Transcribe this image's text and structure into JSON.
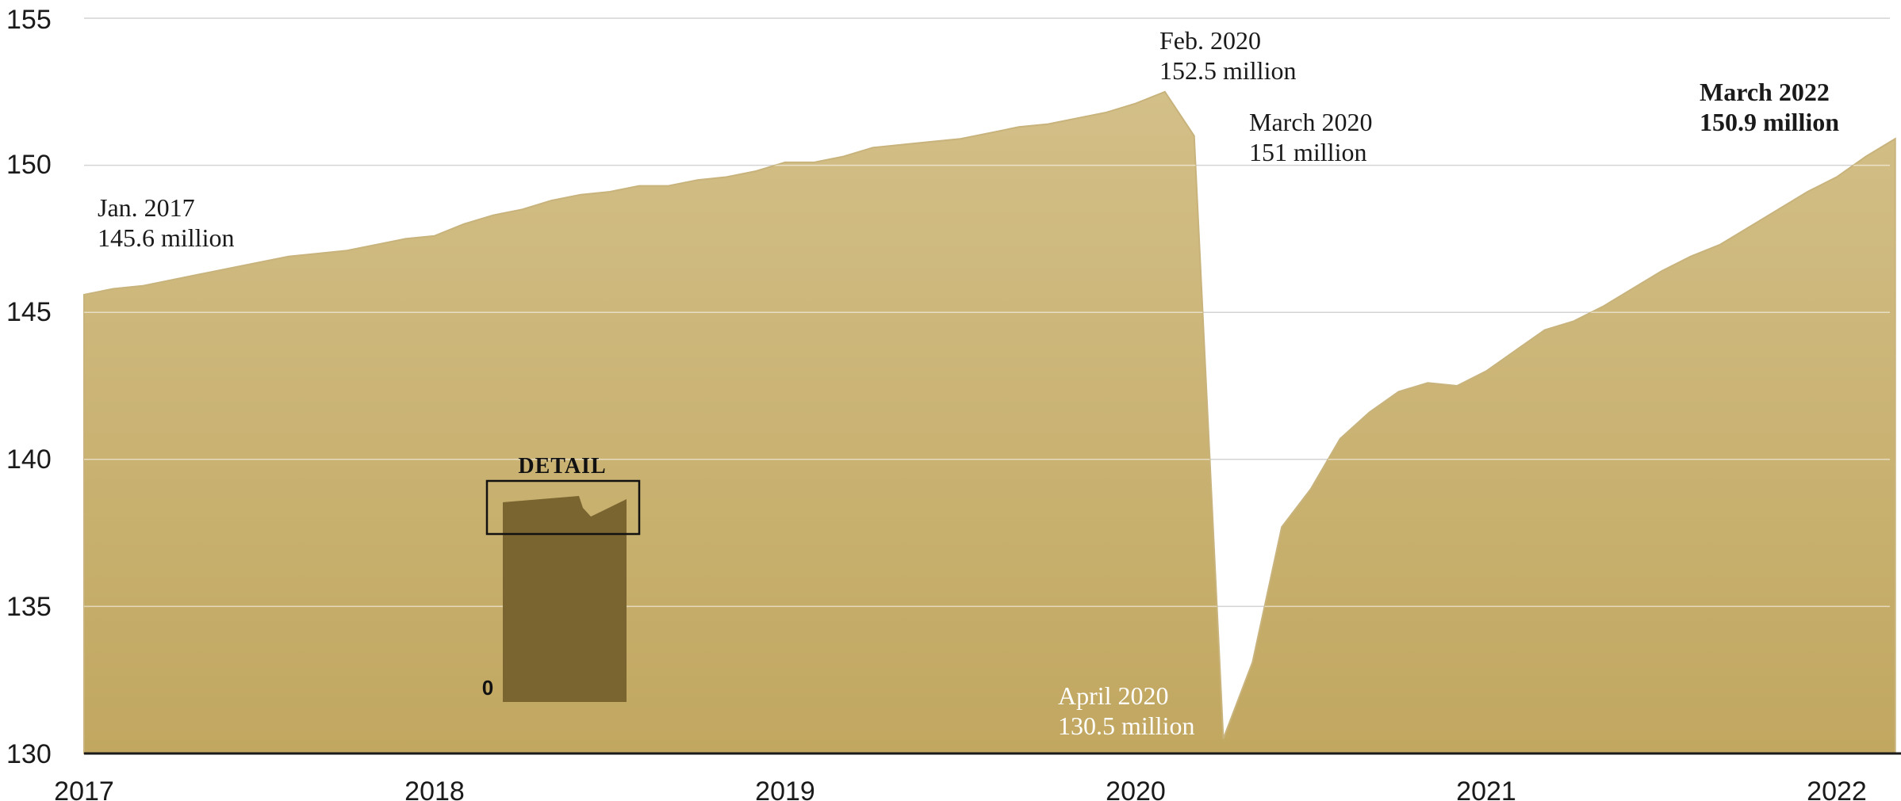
{
  "chart_data": {
    "type": "area",
    "title": "",
    "xlabel": "",
    "ylabel": "",
    "ylim": [
      130,
      155
    ],
    "yticks": [
      "130",
      "135",
      "140",
      "145",
      "150",
      "155"
    ],
    "xticks": [
      "2017",
      "2018",
      "2019",
      "2020",
      "2021",
      "2022"
    ],
    "grid": "horizontal",
    "colors": {
      "area_top": "#d3bf88",
      "area_bottom": "#c1a760",
      "inset": "#7a6430",
      "grid": "#d4d4d4"
    },
    "series": [
      {
        "x": [
          "2017-01",
          "2017-02",
          "2017-03",
          "2017-04",
          "2017-05",
          "2017-06",
          "2017-07",
          "2017-08",
          "2017-09",
          "2017-10",
          "2017-11",
          "2017-12",
          "2018-01",
          "2018-02",
          "2018-03",
          "2018-04",
          "2018-05",
          "2018-06",
          "2018-07",
          "2018-08",
          "2018-09",
          "2018-10",
          "2018-11",
          "2018-12",
          "2019-01",
          "2019-02",
          "2019-03",
          "2019-04",
          "2019-05",
          "2019-06",
          "2019-07",
          "2019-08",
          "2019-09",
          "2019-10",
          "2019-11",
          "2019-12",
          "2020-01",
          "2020-02",
          "2020-03",
          "2020-04",
          "2020-05",
          "2020-06",
          "2020-07",
          "2020-08",
          "2020-09",
          "2020-10",
          "2020-11",
          "2020-12",
          "2021-01",
          "2021-02",
          "2021-03",
          "2021-04",
          "2021-05",
          "2021-06",
          "2021-07",
          "2021-08",
          "2021-09",
          "2021-10",
          "2021-11",
          "2021-12",
          "2022-01",
          "2022-02",
          "2022-03"
        ],
        "values": [
          145.6,
          145.8,
          145.9,
          146.1,
          146.3,
          146.5,
          146.7,
          146.9,
          147.0,
          147.1,
          147.3,
          147.5,
          147.6,
          148.0,
          148.3,
          148.5,
          148.8,
          149.0,
          149.1,
          149.3,
          149.3,
          149.5,
          149.6,
          149.8,
          150.1,
          150.1,
          150.3,
          150.6,
          150.7,
          150.8,
          150.9,
          151.1,
          151.3,
          151.4,
          151.6,
          151.8,
          152.1,
          152.5,
          151.0,
          130.5,
          133.1,
          137.7,
          139.0,
          140.7,
          141.6,
          142.3,
          142.6,
          142.5,
          143.0,
          143.7,
          144.4,
          144.7,
          145.2,
          145.8,
          146.4,
          146.9,
          147.3,
          147.9,
          148.5,
          149.1,
          149.6,
          150.3,
          150.9
        ]
      }
    ],
    "annotations": [
      {
        "line1": "Jan. 2017",
        "line2": "145.6 million"
      },
      {
        "line1": "Feb. 2020",
        "line2": "152.5 million"
      },
      {
        "line1": "March 2020",
        "line2": "151 million"
      },
      {
        "line1": "March 2022",
        "line2": "150.9 million"
      },
      {
        "line1": "April 2020",
        "line2": "130.5 million"
      }
    ],
    "inset": {
      "title": "DETAIL",
      "zero_label": "0"
    }
  }
}
